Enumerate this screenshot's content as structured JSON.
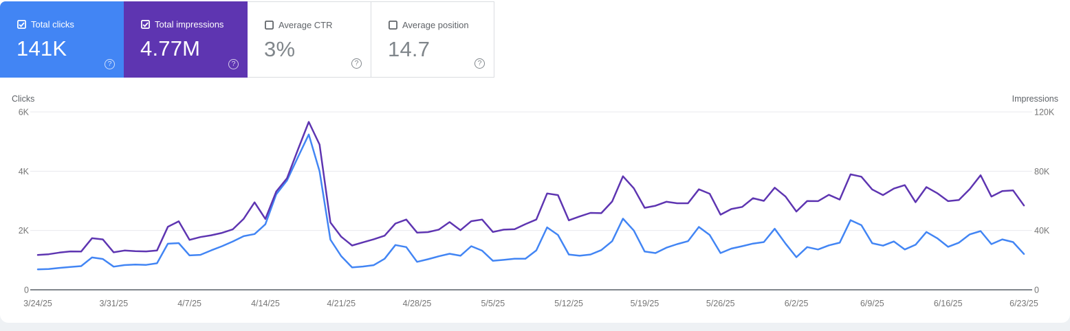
{
  "app": "Google Search Console - Performance",
  "cards": [
    {
      "label": "Total clicks",
      "value": "141K",
      "checked": true,
      "color": "#4285f4"
    },
    {
      "label": "Total impressions",
      "value": "4.77M",
      "checked": true,
      "color": "#5e35b1"
    },
    {
      "label": "Average CTR",
      "value": "3%",
      "checked": false,
      "color": "#ffffff"
    },
    {
      "label": "Average position",
      "value": "14.7",
      "checked": false,
      "color": "#ffffff"
    }
  ],
  "chart_data": {
    "type": "line",
    "x": [
      "3/24/25",
      "3/25/25",
      "3/26/25",
      "3/27/25",
      "3/28/25",
      "3/29/25",
      "3/30/25",
      "3/31/25",
      "4/1/25",
      "4/2/25",
      "4/3/25",
      "4/4/25",
      "4/5/25",
      "4/6/25",
      "4/7/25",
      "4/8/25",
      "4/9/25",
      "4/10/25",
      "4/11/25",
      "4/12/25",
      "4/13/25",
      "4/14/25",
      "4/15/25",
      "4/16/25",
      "4/17/25",
      "4/18/25",
      "4/19/25",
      "4/20/25",
      "4/21/25",
      "4/22/25",
      "4/23/25",
      "4/24/25",
      "4/25/25",
      "4/26/25",
      "4/27/25",
      "4/28/25",
      "4/29/25",
      "4/30/25",
      "5/1/25",
      "5/2/25",
      "5/3/25",
      "5/4/25",
      "5/5/25",
      "5/6/25",
      "5/7/25",
      "5/8/25",
      "5/9/25",
      "5/10/25",
      "5/11/25",
      "5/12/25",
      "5/13/25",
      "5/14/25",
      "5/15/25",
      "5/16/25",
      "5/17/25",
      "5/18/25",
      "5/19/25",
      "5/20/25",
      "5/21/25",
      "5/22/25",
      "5/23/25",
      "5/24/25",
      "5/25/25",
      "5/26/25",
      "5/27/25",
      "5/28/25",
      "5/29/25",
      "5/30/25",
      "5/31/25",
      "6/1/25",
      "6/2/25",
      "6/3/25",
      "6/4/25",
      "6/5/25",
      "6/6/25",
      "6/7/25",
      "6/8/25",
      "6/9/25",
      "6/10/25",
      "6/11/25",
      "6/12/25",
      "6/13/25",
      "6/14/25",
      "6/15/25",
      "6/16/25",
      "6/17/25",
      "6/18/25",
      "6/19/25",
      "6/20/25",
      "6/21/25",
      "6/22/25",
      "6/23/25"
    ],
    "x_tick_every": 7,
    "x_tick_labels": [
      "3/24/25",
      "3/31/25",
      "4/7/25",
      "4/14/25",
      "4/21/25",
      "4/28/25",
      "5/5/25",
      "5/12/25",
      "5/19/25",
      "5/26/25",
      "6/2/25",
      "6/9/25",
      "6/16/25",
      "6/23/25"
    ],
    "series": [
      {
        "name": "Clicks",
        "axis": "left",
        "color": "#4285f4",
        "values": [
          690,
          700,
          740,
          770,
          800,
          1090,
          1040,
          780,
          834,
          851,
          841,
          895,
          1555,
          1575,
          1160,
          1180,
          1330,
          1470,
          1630,
          1810,
          1880,
          2210,
          3220,
          3690,
          4470,
          5240,
          4000,
          1690,
          1135,
          755,
          785,
          832,
          1047,
          1510,
          1440,
          943,
          1030,
          1130,
          1216,
          1148,
          1470,
          1320,
          978,
          1010,
          1050,
          1050,
          1330,
          2105,
          1850,
          1190,
          1150,
          1190,
          1340,
          1640,
          2400,
          2000,
          1290,
          1240,
          1420,
          1540,
          1640,
          2120,
          1850,
          1240,
          1390,
          1470,
          1560,
          1610,
          2060,
          1560,
          1100,
          1440,
          1360,
          1500,
          1590,
          2350,
          2180,
          1570,
          1490,
          1630,
          1360,
          1520,
          1950,
          1740,
          1450,
          1590,
          1870,
          1980,
          1540,
          1700,
          1610,
          1210
        ]
      },
      {
        "name": "Impressions",
        "axis": "right",
        "color": "#5e35b1",
        "values": [
          23500,
          24000,
          25100,
          25900,
          25800,
          34800,
          34000,
          25300,
          26500,
          26100,
          25900,
          26500,
          42500,
          46200,
          33700,
          35600,
          36800,
          38400,
          40800,
          47900,
          59000,
          47800,
          66300,
          75300,
          94500,
          113300,
          98000,
          45400,
          35800,
          29900,
          32000,
          34100,
          36500,
          44700,
          47400,
          38600,
          38900,
          40600,
          45700,
          40200,
          46300,
          47400,
          39000,
          40600,
          40900,
          44300,
          47400,
          65000,
          63900,
          46900,
          49500,
          51900,
          51700,
          59600,
          76600,
          68500,
          55300,
          56700,
          59400,
          58400,
          58400,
          67800,
          64800,
          50700,
          54500,
          55900,
          61800,
          60000,
          68900,
          62900,
          52800,
          59900,
          59800,
          64100,
          60900,
          77900,
          76300,
          67700,
          63900,
          68300,
          70600,
          59100,
          69300,
          65200,
          59800,
          60600,
          67900,
          77300,
          62900,
          66600,
          67100,
          56900
        ]
      }
    ],
    "left_axis": {
      "title": "Clicks",
      "ticks": [
        "0",
        "2K",
        "4K",
        "6K"
      ],
      "min": 0,
      "max": 6000
    },
    "right_axis": {
      "title": "Impressions",
      "ticks": [
        "0",
        "40K",
        "80K",
        "120K"
      ],
      "min": 0,
      "max": 120000
    },
    "grid": "horizontal",
    "legend_position": "none"
  }
}
